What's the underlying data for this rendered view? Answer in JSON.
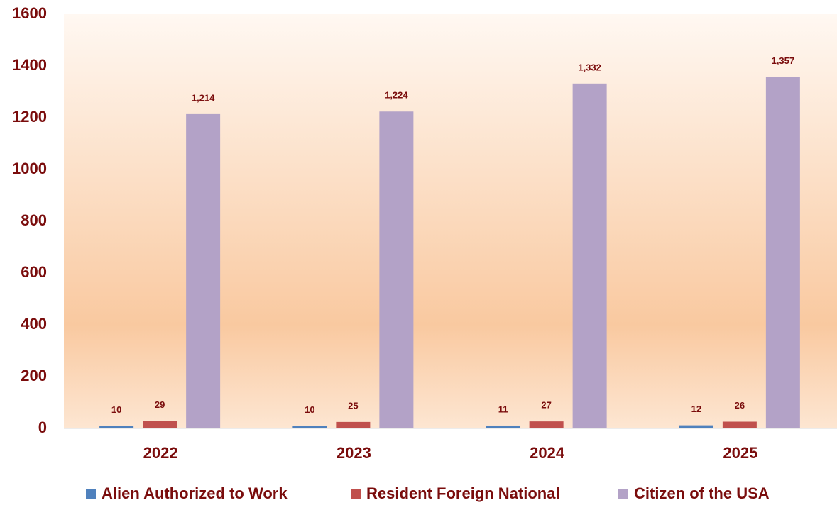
{
  "chart_data": {
    "type": "bar",
    "categories": [
      "2022",
      "2023",
      "2024",
      "2025"
    ],
    "series": [
      {
        "name": "Alien Authorized to Work",
        "color": "#4f81bd",
        "values": [
          10,
          10,
          11,
          12
        ],
        "value_labels": [
          "10",
          "10",
          "11",
          "12"
        ]
      },
      {
        "name": "Resident Foreign National",
        "color": "#c0504d",
        "values": [
          29,
          25,
          27,
          26
        ],
        "value_labels": [
          "29",
          "25",
          "27",
          "26"
        ]
      },
      {
        "name": "Citizen of the USA",
        "color": "#b3a2c7",
        "values": [
          1214,
          1224,
          1332,
          1357
        ],
        "value_labels": [
          "1,214",
          "1,224",
          "1,332",
          "1,357"
        ]
      }
    ],
    "ylim": [
      0,
      1600
    ],
    "yticks": [
      0,
      200,
      400,
      600,
      800,
      1000,
      1200,
      1400,
      1600
    ],
    "legend": "bottom"
  }
}
